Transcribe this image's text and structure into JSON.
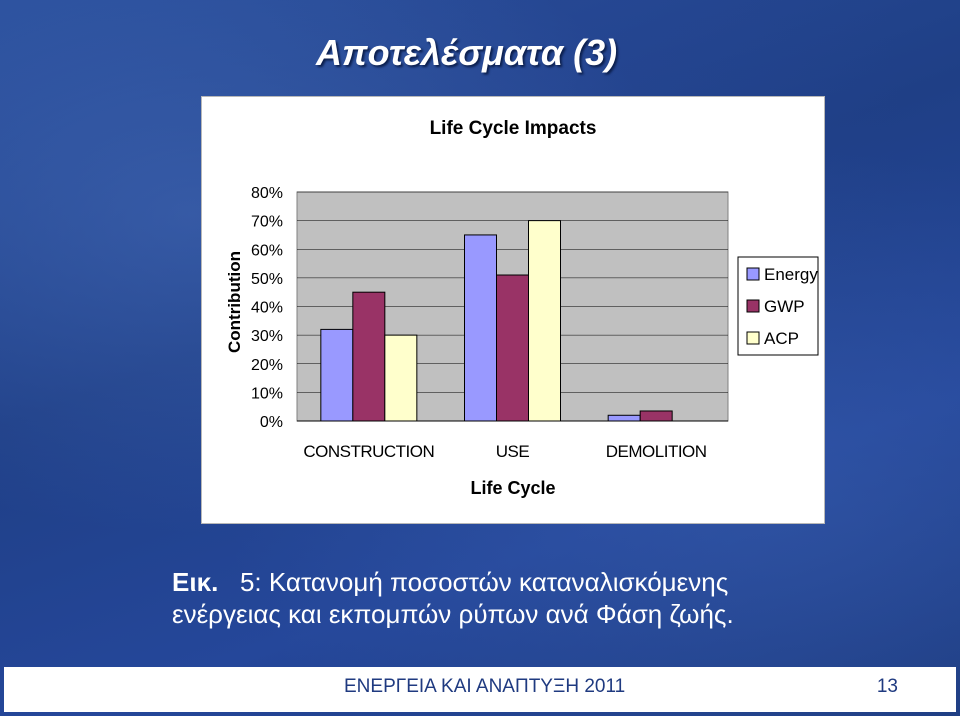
{
  "slide": {
    "title": "Αποτελέσματα (3)",
    "caption_label": "Εικ.",
    "caption_number": "5:",
    "caption_line1": "Κατανομή ποσοστών καταναλισκόμενης",
    "caption_line2": "ενέργειας και εκπομπών ρύπων ανά Φάση ζωής.",
    "footer": "ΕΝΕΡΓΕΙΑ ΚΑΙ ΑΝΑΠΤΥΞΗ 2011",
    "page_number": "13"
  },
  "chart_data": {
    "type": "bar",
    "title": "Life Cycle Impacts",
    "xlabel": "Life Cycle",
    "ylabel": "Contribution",
    "categories": [
      "CONSTRUCTION",
      "USE",
      "DEMOLITION"
    ],
    "series": [
      {
        "name": "Energy",
        "values": [
          32,
          65,
          2
        ],
        "color": "#9999ff"
      },
      {
        "name": "GWP",
        "values": [
          45,
          51,
          3.5
        ],
        "color": "#993366"
      },
      {
        "name": "ACP",
        "values": [
          30,
          70,
          0
        ],
        "color": "#ffffcc"
      }
    ],
    "ylim": [
      0,
      80
    ],
    "yticks": [
      "0%",
      "10%",
      "20%",
      "30%",
      "40%",
      "50%",
      "60%",
      "70%",
      "80%"
    ],
    "plot_background": "#c0c0c0",
    "grid": true,
    "legend_position": "right"
  }
}
